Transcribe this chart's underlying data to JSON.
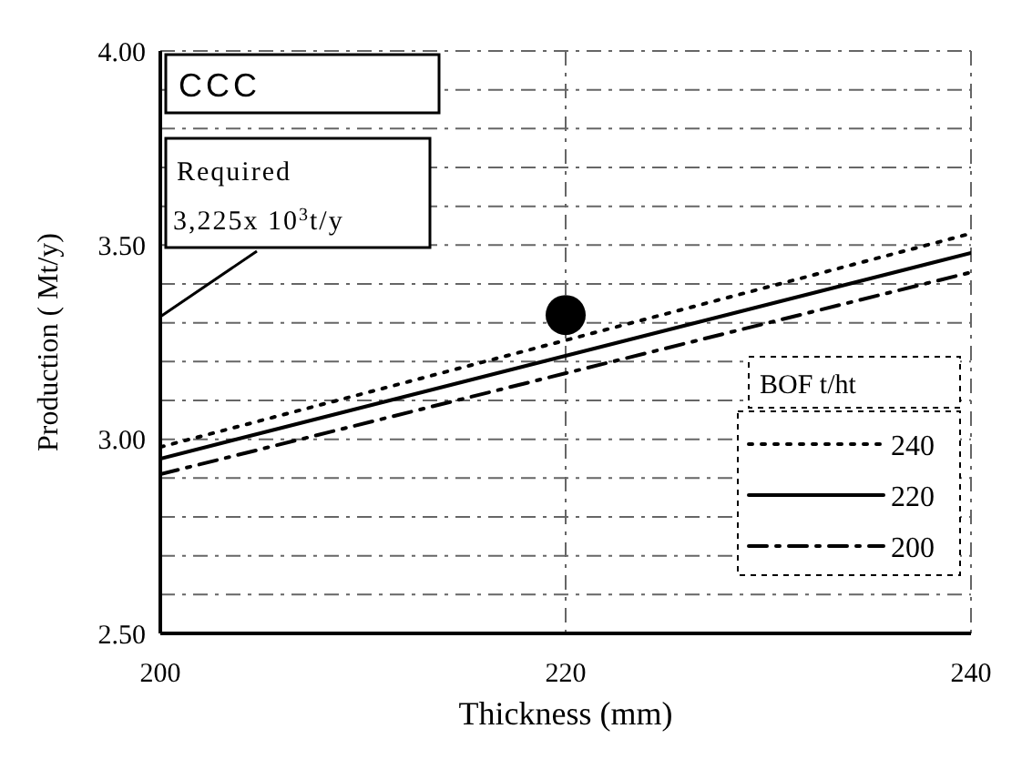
{
  "chart_data": {
    "type": "line",
    "xlabel": "Thickness (mm)",
    "ylabel": "Production ( Mt/y)",
    "legend_title": "BOF t/ht",
    "legend": "right",
    "grid": true,
    "x": [
      200,
      240
    ],
    "xlim": [
      200,
      240
    ],
    "xticks": [
      200,
      220,
      240
    ],
    "ylim": [
      2.5,
      4.0
    ],
    "yticks": [
      {
        "value": 2.5,
        "label": "2.50"
      },
      {
        "value": 2.6,
        "label": null
      },
      {
        "value": 2.7,
        "label": null
      },
      {
        "value": 2.8,
        "label": null
      },
      {
        "value": 2.9,
        "label": null
      },
      {
        "value": 3.0,
        "label": "3.00"
      },
      {
        "value": 3.1,
        "label": null
      },
      {
        "value": 3.2,
        "label": null
      },
      {
        "value": 3.3,
        "label": null
      },
      {
        "value": 3.4,
        "label": null
      },
      {
        "value": 3.5,
        "label": "3.50"
      },
      {
        "value": 3.6,
        "label": null
      },
      {
        "value": 3.7,
        "label": null
      },
      {
        "value": 3.8,
        "label": null
      },
      {
        "value": 3.9,
        "label": null
      },
      {
        "value": 4.0,
        "label": "4.00"
      }
    ],
    "series": [
      {
        "name": "240",
        "color": "#000000",
        "line_style": "dotted",
        "values": [
          2.98,
          3.53
        ]
      },
      {
        "name": "220",
        "color": "#000000",
        "line_style": "solid",
        "values": [
          2.95,
          3.48
        ]
      },
      {
        "name": "200",
        "color": "#000000",
        "line_style": "dashed",
        "values": [
          2.91,
          3.43
        ]
      },
      {
        "type": "scatter",
        "color": "#000000",
        "marker": "circle",
        "x": [
          220
        ],
        "values": [
          3.32
        ]
      }
    ],
    "annotations": [
      "CCC",
      "Required 3,225x 10$^{3}$t/y"
    ]
  }
}
